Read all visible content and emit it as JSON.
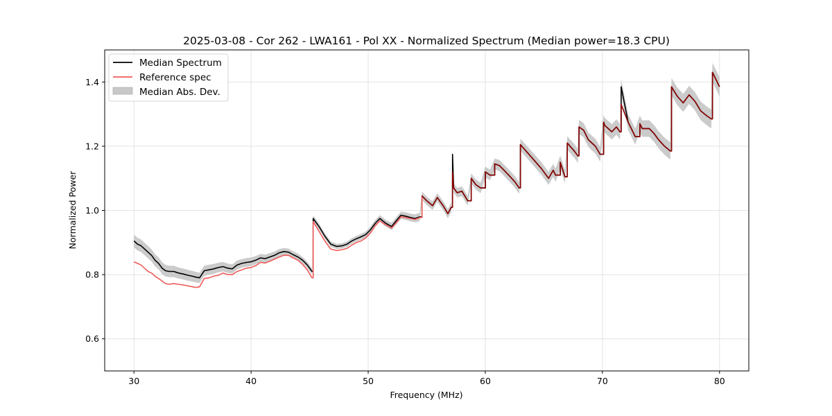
{
  "chart_data": {
    "type": "line",
    "title": "2025-03-08 - Cor 262 - LWA161 - Pol XX - Normalized Spectrum (Median power=18.3 CPU)",
    "xlabel": "Frequency (MHz)",
    "ylabel": "Normalized Power",
    "xlim": [
      27.5,
      82.5
    ],
    "ylim": [
      0.5,
      1.5
    ],
    "xticks": [
      30,
      40,
      50,
      60,
      70,
      80
    ],
    "xtick_labels": [
      "30",
      "40",
      "50",
      "60",
      "70",
      "80"
    ],
    "yticks": [
      0.6,
      0.8,
      1.0,
      1.2,
      1.4
    ],
    "ytick_labels": [
      "0.6",
      "0.8",
      "1.0",
      "1.2",
      "1.4"
    ],
    "grid": true,
    "legend_position": "top-left",
    "legend": [
      {
        "label": "Median Spectrum",
        "kind": "line",
        "color": "#000000"
      },
      {
        "label": "Reference spec",
        "kind": "line",
        "color": "#f05a5a"
      },
      {
        "label": "Median Abs. Dev.",
        "kind": "fill",
        "color": "#c8c8c8"
      }
    ],
    "x": [
      30.0,
      30.3,
      30.6,
      30.9,
      31.2,
      31.5,
      31.8,
      32.1,
      32.4,
      32.7,
      33.0,
      33.4,
      33.8,
      34.2,
      34.6,
      35.0,
      35.3,
      35.6,
      36.0,
      36.4,
      36.8,
      37.2,
      37.6,
      38.0,
      38.4,
      38.8,
      39.2,
      39.6,
      40.0,
      40.4,
      40.8,
      41.2,
      41.6,
      42.0,
      42.4,
      42.8,
      43.2,
      43.6,
      44.0,
      44.4,
      44.8,
      45.2,
      45.3,
      45.8,
      46.3,
      46.8,
      47.3,
      47.8,
      48.2,
      48.6,
      49.0,
      49.4,
      49.8,
      50.2,
      50.6,
      51.0,
      51.5,
      52.0,
      52.4,
      52.8,
      53.2,
      53.6,
      54.0,
      54.4,
      54.6,
      55.0,
      55.5,
      55.9,
      56.4,
      56.8,
      57.1,
      57.2,
      57.3,
      57.6,
      58.0,
      58.5,
      58.8,
      59.2,
      59.6,
      60.0,
      60.4,
      60.8,
      61.2,
      61.6,
      62.0,
      62.5,
      62.9,
      63.0,
      63.6,
      64.2,
      64.8,
      65.4,
      65.8,
      66.0,
      66.4,
      66.8,
      67.0,
      67.6,
      67.9,
      68.0,
      68.4,
      68.8,
      69.4,
      69.8,
      70.1,
      70.2,
      70.8,
      71.2,
      71.5,
      71.6,
      72.2,
      72.8,
      73.2,
      73.4,
      74.0,
      74.4,
      74.8,
      75.3,
      75.8,
      75.9,
      76.4,
      76.9,
      77.4,
      77.9,
      78.4,
      78.9,
      79.3,
      79.4,
      80.0
    ],
    "series": [
      {
        "name": "Median Spectrum",
        "color": "#000000",
        "values": [
          0.905,
          0.895,
          0.89,
          0.88,
          0.87,
          0.86,
          0.845,
          0.835,
          0.82,
          0.812,
          0.81,
          0.81,
          0.805,
          0.802,
          0.798,
          0.795,
          0.792,
          0.79,
          0.812,
          0.815,
          0.818,
          0.822,
          0.825,
          0.82,
          0.818,
          0.83,
          0.835,
          0.838,
          0.84,
          0.845,
          0.852,
          0.85,
          0.855,
          0.86,
          0.868,
          0.872,
          0.87,
          0.862,
          0.855,
          0.845,
          0.83,
          0.81,
          0.975,
          0.95,
          0.92,
          0.895,
          0.888,
          0.89,
          0.895,
          0.905,
          0.912,
          0.918,
          0.925,
          0.94,
          0.96,
          0.975,
          0.96,
          0.95,
          0.968,
          0.985,
          0.982,
          0.978,
          0.975,
          0.98,
          1.045,
          1.03,
          1.015,
          1.04,
          1.015,
          0.99,
          1.01,
          1.175,
          1.07,
          1.055,
          1.06,
          1.03,
          1.1,
          1.08,
          1.07,
          1.12,
          1.11,
          1.145,
          1.14,
          1.125,
          1.11,
          1.09,
          1.07,
          1.205,
          1.18,
          1.155,
          1.13,
          1.1,
          1.125,
          1.11,
          1.15,
          1.105,
          1.21,
          1.185,
          1.17,
          1.26,
          1.25,
          1.22,
          1.2,
          1.175,
          1.275,
          1.265,
          1.245,
          1.26,
          1.245,
          1.385,
          1.275,
          1.23,
          1.27,
          1.255,
          1.255,
          1.24,
          1.22,
          1.2,
          1.185,
          1.385,
          1.355,
          1.335,
          1.36,
          1.34,
          1.31,
          1.295,
          1.285,
          1.43,
          1.385
        ]
      },
      {
        "name": "Reference spec",
        "color": "#f05a5a",
        "values": [
          0.84,
          0.835,
          0.83,
          0.82,
          0.81,
          0.805,
          0.795,
          0.788,
          0.78,
          0.772,
          0.77,
          0.772,
          0.77,
          0.768,
          0.765,
          0.762,
          0.76,
          0.762,
          0.788,
          0.79,
          0.795,
          0.798,
          0.805,
          0.8,
          0.8,
          0.81,
          0.815,
          0.82,
          0.822,
          0.828,
          0.838,
          0.836,
          0.842,
          0.848,
          0.855,
          0.86,
          0.86,
          0.852,
          0.845,
          0.832,
          0.815,
          0.79,
          0.965,
          0.935,
          0.905,
          0.88,
          0.875,
          0.878,
          0.882,
          0.892,
          0.9,
          0.905,
          0.915,
          0.93,
          0.952,
          0.968,
          0.955,
          0.945,
          0.962,
          0.98,
          0.978,
          0.975,
          0.972,
          0.978,
          1.045,
          1.03,
          1.015,
          1.04,
          1.015,
          0.99,
          1.01,
          1.12,
          1.07,
          1.055,
          1.06,
          1.03,
          1.1,
          1.08,
          1.07,
          1.12,
          1.11,
          1.145,
          1.14,
          1.125,
          1.11,
          1.09,
          1.07,
          1.205,
          1.18,
          1.155,
          1.13,
          1.1,
          1.125,
          1.11,
          1.15,
          1.105,
          1.21,
          1.185,
          1.17,
          1.26,
          1.25,
          1.22,
          1.2,
          1.175,
          1.275,
          1.265,
          1.245,
          1.26,
          1.245,
          1.33,
          1.275,
          1.23,
          1.27,
          1.255,
          1.255,
          1.24,
          1.22,
          1.2,
          1.185,
          1.385,
          1.355,
          1.335,
          1.36,
          1.34,
          1.31,
          1.295,
          1.285,
          1.43,
          1.385
        ]
      },
      {
        "name": "Median Abs. Dev.",
        "kind": "band",
        "color": "#c8c8c8",
        "halfwidth_start": 0.02,
        "halfwidth_mid": 0.008,
        "halfwidth_end": 0.03
      }
    ]
  }
}
